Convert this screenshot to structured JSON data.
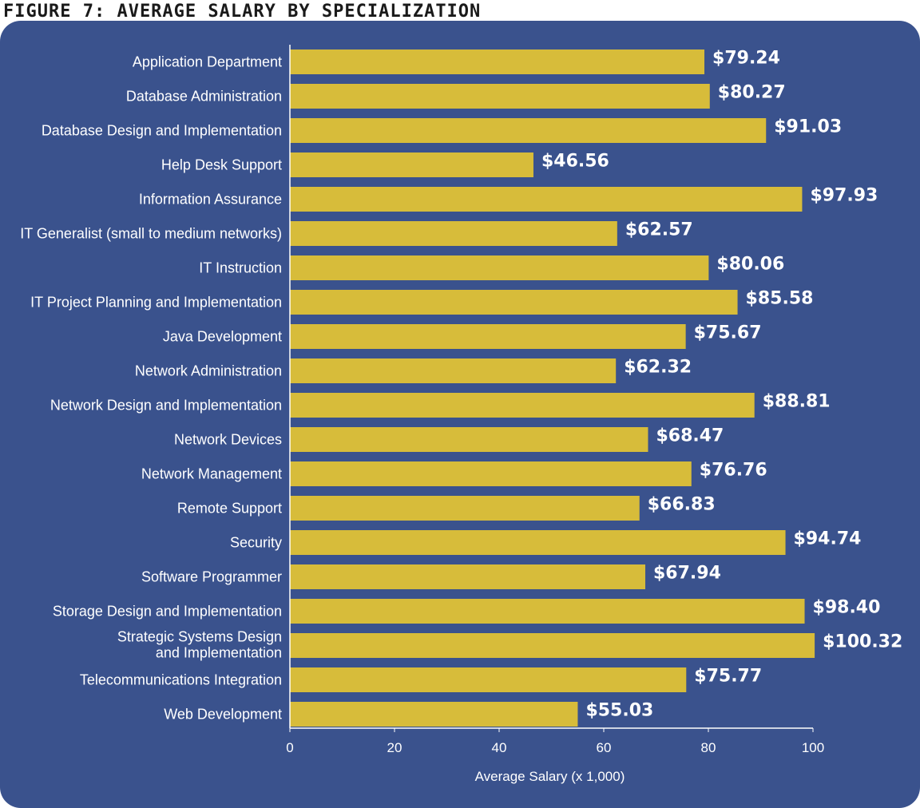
{
  "figure_title": "FIGURE 7: AVERAGE SALARY BY SPECIALIZATION",
  "colors": {
    "panel": "#3a528d",
    "bar": "#d7bc3a",
    "text": "#ffffff"
  },
  "chart_data": {
    "type": "bar",
    "orientation": "horizontal",
    "title": "FIGURE 7: AVERAGE SALARY BY SPECIALIZATION",
    "xlabel": "Average Salary (x 1,000)",
    "ylabel": "",
    "xlim": [
      0,
      100
    ],
    "xticks": [
      0,
      20,
      40,
      60,
      80,
      100
    ],
    "grid": false,
    "categories": [
      "Application Department",
      "Database Administration",
      "Database Design and Implementation",
      "Help Desk Support",
      "Information Assurance",
      "IT Generalist (small to medium networks)",
      "IT Instruction",
      "IT Project Planning and Implementation",
      "Java Development",
      "Network Administration",
      "Network Design and Implementation",
      "Network Devices",
      "Network Management",
      "Remote Support",
      "Security",
      "Software Programmer",
      "Storage Design and Implementation",
      "Strategic Systems Design\nand Implementation",
      "Telecommunications Integration",
      "Web Development"
    ],
    "values": [
      79.24,
      80.27,
      91.03,
      46.56,
      97.93,
      62.57,
      80.06,
      85.58,
      75.67,
      62.32,
      88.81,
      68.47,
      76.76,
      66.83,
      94.74,
      67.94,
      98.4,
      100.32,
      75.77,
      55.03
    ],
    "value_labels": [
      "$79.24",
      "$80.27",
      "$91.03",
      "$46.56",
      "$97.93",
      "$62.57",
      "$80.06",
      "$85.58",
      "$75.67",
      "$62.32",
      "$88.81",
      "$68.47",
      "$76.76",
      "$66.83",
      "$94.74",
      "$67.94",
      "$98.40",
      "$100.32",
      "$75.77",
      "$55.03"
    ]
  }
}
